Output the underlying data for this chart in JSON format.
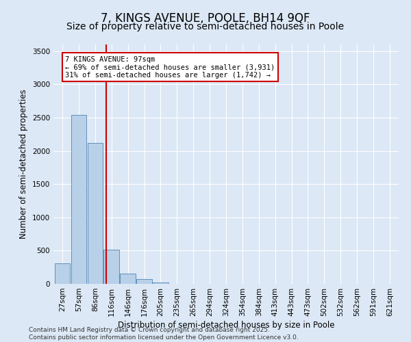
{
  "title": "7, KINGS AVENUE, POOLE, BH14 9QF",
  "subtitle": "Size of property relative to semi-detached houses in Poole",
  "xlabel": "Distribution of semi-detached houses by size in Poole",
  "ylabel": "Number of semi-detached properties",
  "categories": [
    "27sqm",
    "57sqm",
    "86sqm",
    "116sqm",
    "146sqm",
    "176sqm",
    "205sqm",
    "235sqm",
    "265sqm",
    "294sqm",
    "324sqm",
    "354sqm",
    "384sqm",
    "413sqm",
    "443sqm",
    "473sqm",
    "502sqm",
    "532sqm",
    "562sqm",
    "591sqm",
    "621sqm"
  ],
  "values": [
    310,
    2540,
    2120,
    510,
    155,
    75,
    20,
    0,
    0,
    0,
    0,
    0,
    0,
    0,
    0,
    0,
    0,
    0,
    0,
    0,
    0
  ],
  "bar_color": "#b8d0e8",
  "bar_edge_color": "#6090bb",
  "vline_x": 2.68,
  "vline_color": "#cc0000",
  "annotation_text": "7 KINGS AVENUE: 97sqm\n← 69% of semi-detached houses are smaller (3,931)\n31% of semi-detached houses are larger (1,742) →",
  "annotation_box_color": "#cc0000",
  "ylim": [
    0,
    3600
  ],
  "yticks": [
    0,
    500,
    1000,
    1500,
    2000,
    2500,
    3000,
    3500
  ],
  "bg_color": "#dce8f5",
  "plot_bg": "#dce8f5",
  "grid_color": "#ffffff",
  "footer_line1": "Contains HM Land Registry data © Crown copyright and database right 2025.",
  "footer_line2": "Contains public sector information licensed under the Open Government Licence v3.0.",
  "title_fontsize": 12,
  "subtitle_fontsize": 10,
  "label_fontsize": 8.5,
  "tick_fontsize": 7.5,
  "footer_fontsize": 6.5,
  "annot_fontsize": 7.5
}
